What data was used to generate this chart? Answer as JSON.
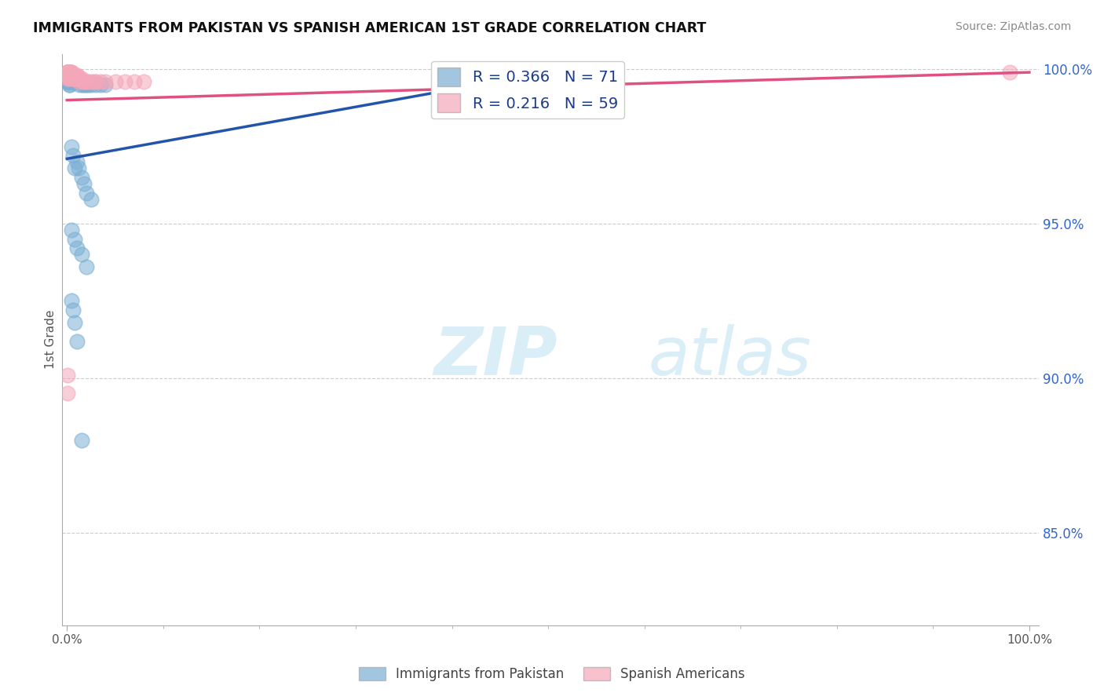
{
  "title": "IMMIGRANTS FROM PAKISTAN VS SPANISH AMERICAN 1ST GRADE CORRELATION CHART",
  "source_text": "Source: ZipAtlas.com",
  "ylabel": "1st Grade",
  "xlim": [
    0.0,
    1.0
  ],
  "ylim": [
    0.82,
    1.005
  ],
  "yticks": [
    0.85,
    0.9,
    0.95,
    1.0
  ],
  "ytick_labels": [
    "85.0%",
    "90.0%",
    "95.0%",
    "100.0%"
  ],
  "legend_r1": "R = 0.366",
  "legend_n1": "N = 71",
  "legend_r2": "R = 0.216",
  "legend_n2": "N = 59",
  "blue_color": "#7bafd4",
  "pink_color": "#f4a7b9",
  "blue_line_color": "#2255aa",
  "pink_line_color": "#e05080",
  "legend_text_color": "#1a3a8a",
  "watermark_color": "#daeef8",
  "bottom_legend": [
    "Immigrants from Pakistan",
    "Spanish Americans"
  ],
  "blue_x": [
    0.001,
    0.001,
    0.001,
    0.001,
    0.001,
    0.001,
    0.001,
    0.001,
    0.001,
    0.001,
    0.001,
    0.001,
    0.001,
    0.002,
    0.002,
    0.002,
    0.002,
    0.002,
    0.002,
    0.002,
    0.002,
    0.003,
    0.003,
    0.003,
    0.003,
    0.003,
    0.004,
    0.004,
    0.004,
    0.005,
    0.005,
    0.005,
    0.006,
    0.006,
    0.007,
    0.007,
    0.008,
    0.009,
    0.01,
    0.01,
    0.011,
    0.012,
    0.013,
    0.015,
    0.016,
    0.018,
    0.02,
    0.022,
    0.025,
    0.03,
    0.035,
    0.04,
    0.005,
    0.006,
    0.008,
    0.01,
    0.012,
    0.015,
    0.018,
    0.02,
    0.025,
    0.005,
    0.008,
    0.01,
    0.015,
    0.02,
    0.005,
    0.006,
    0.008,
    0.01,
    0.015
  ],
  "blue_y": [
    0.999,
    0.999,
    0.999,
    0.998,
    0.998,
    0.998,
    0.998,
    0.997,
    0.997,
    0.997,
    0.996,
    0.996,
    0.996,
    0.999,
    0.998,
    0.998,
    0.997,
    0.997,
    0.996,
    0.996,
    0.995,
    0.999,
    0.998,
    0.997,
    0.996,
    0.995,
    0.998,
    0.997,
    0.996,
    0.998,
    0.997,
    0.996,
    0.997,
    0.996,
    0.997,
    0.996,
    0.996,
    0.996,
    0.997,
    0.996,
    0.996,
    0.996,
    0.995,
    0.996,
    0.995,
    0.995,
    0.995,
    0.995,
    0.995,
    0.995,
    0.995,
    0.995,
    0.975,
    0.972,
    0.968,
    0.97,
    0.968,
    0.965,
    0.963,
    0.96,
    0.958,
    0.948,
    0.945,
    0.942,
    0.94,
    0.936,
    0.925,
    0.922,
    0.918,
    0.912,
    0.88
  ],
  "pink_x": [
    0.001,
    0.001,
    0.001,
    0.001,
    0.001,
    0.001,
    0.001,
    0.001,
    0.001,
    0.001,
    0.001,
    0.002,
    0.002,
    0.002,
    0.002,
    0.002,
    0.002,
    0.003,
    0.003,
    0.003,
    0.003,
    0.004,
    0.004,
    0.005,
    0.005,
    0.005,
    0.005,
    0.006,
    0.006,
    0.007,
    0.007,
    0.008,
    0.009,
    0.01,
    0.01,
    0.01,
    0.011,
    0.012,
    0.012,
    0.013,
    0.014,
    0.015,
    0.016,
    0.018,
    0.02,
    0.022,
    0.025,
    0.028,
    0.03,
    0.035,
    0.04,
    0.05,
    0.06,
    0.07,
    0.08,
    0.001,
    0.001,
    0.002,
    0.98
  ],
  "pink_y": [
    0.999,
    0.999,
    0.999,
    0.999,
    0.999,
    0.998,
    0.998,
    0.998,
    0.998,
    0.998,
    0.997,
    0.999,
    0.999,
    0.998,
    0.998,
    0.998,
    0.997,
    0.999,
    0.998,
    0.998,
    0.997,
    0.999,
    0.998,
    0.999,
    0.999,
    0.998,
    0.998,
    0.998,
    0.997,
    0.998,
    0.997,
    0.998,
    0.997,
    0.998,
    0.998,
    0.997,
    0.997,
    0.997,
    0.996,
    0.997,
    0.997,
    0.997,
    0.996,
    0.996,
    0.996,
    0.996,
    0.996,
    0.996,
    0.996,
    0.996,
    0.996,
    0.996,
    0.996,
    0.996,
    0.996,
    0.901,
    0.895,
    0.999,
    0.999
  ],
  "blue_trend_x": [
    0.0,
    0.5
  ],
  "blue_trend_y": [
    0.971,
    0.999
  ],
  "pink_trend_x": [
    0.0,
    1.0
  ],
  "pink_trend_y": [
    0.99,
    0.999
  ]
}
